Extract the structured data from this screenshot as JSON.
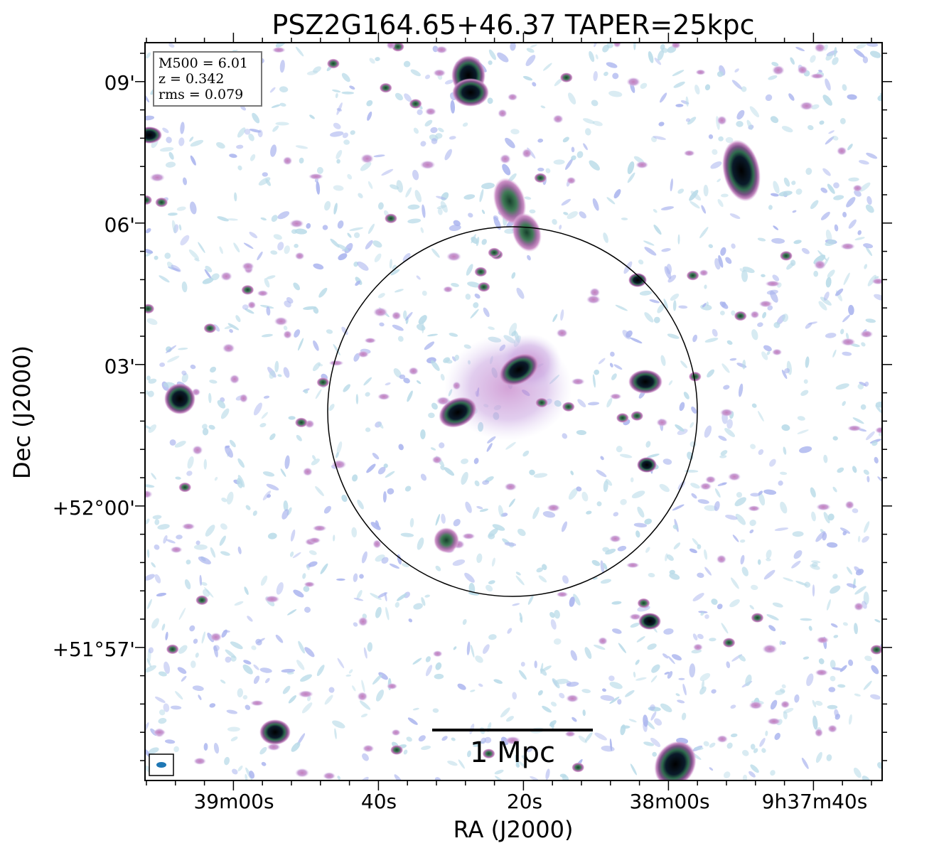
{
  "figure": {
    "title": "PSZ2G164.65+46.37 TAPER=25kpc",
    "xlabel": "RA (J2000)",
    "ylabel": "Dec (J2000)",
    "x_ticks": [
      "39m00s",
      "40s",
      "20s",
      "38m00s",
      "9h37m40s"
    ],
    "y_ticks": [
      "09'",
      "06'",
      "03'",
      "+52°00'",
      "+51°57'"
    ],
    "info_box": {
      "m500": "M500 = 6.01",
      "z": "z = 0.342",
      "rms": "rms = 0.079"
    },
    "scale_bar_label": "1 Mpc",
    "colors": {
      "faint_noise": "#b9dbe8",
      "low_emission": "#aab4ee",
      "mid_emission": "#c77fbf",
      "bright_emission": "#3a7a52",
      "peak": "#000000",
      "beam": "#1f77b4"
    }
  }
}
